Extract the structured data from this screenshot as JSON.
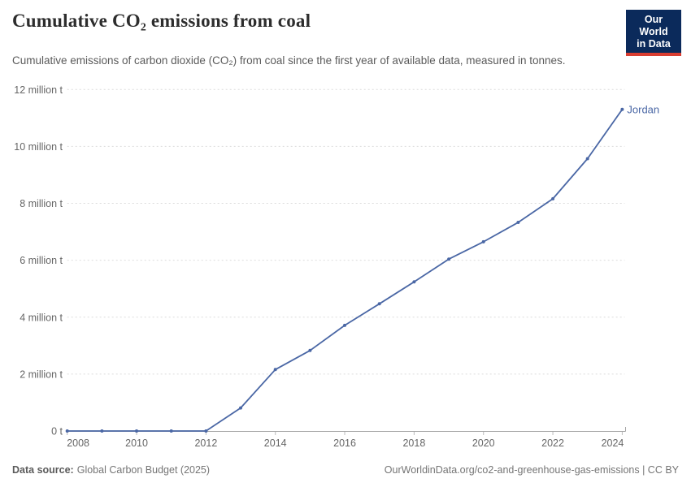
{
  "header": {
    "title": "Cumulative CO₂ emissions from coal",
    "subtitle": "Cumulative emissions of carbon dioxide (CO₂) from coal since the first year of available data, measured in tonnes.",
    "logo": {
      "line1": "Our World",
      "line2": "in Data",
      "bg_color": "#0b2a5b",
      "accent_color": "#d93d31"
    }
  },
  "chart_data": {
    "type": "line",
    "title": "Cumulative CO₂ emissions from coal",
    "unit": "million tonnes",
    "xlabel": "",
    "ylabel": "",
    "xlim": [
      2008,
      2024
    ],
    "ylim": [
      0,
      12
    ],
    "grid": "horizontal dashed",
    "legend_position": "end-of-line label",
    "x_ticks": [
      2008,
      2010,
      2012,
      2014,
      2016,
      2018,
      2020,
      2022,
      2024
    ],
    "y_ticks": [
      {
        "value": 0,
        "label": "0 t"
      },
      {
        "value": 2,
        "label": "2 million t"
      },
      {
        "value": 4,
        "label": "4 million t"
      },
      {
        "value": 6,
        "label": "6 million t"
      },
      {
        "value": 8,
        "label": "8 million t"
      },
      {
        "value": 10,
        "label": "10 million t"
      },
      {
        "value": 12,
        "label": "12 million t"
      }
    ],
    "series": [
      {
        "name": "Jordan",
        "color": "#4a67a5",
        "x": [
          2008,
          2009,
          2010,
          2011,
          2012,
          2013,
          2014,
          2015,
          2016,
          2017,
          2018,
          2019,
          2020,
          2021,
          2022,
          2023,
          2024
        ],
        "values": [
          0,
          0,
          0,
          0,
          0,
          0.81,
          2.16,
          2.83,
          3.71,
          4.47,
          5.24,
          6.04,
          6.65,
          7.33,
          8.16,
          9.57,
          11.3
        ]
      }
    ],
    "colors": {
      "gridline": "#dcdcdc",
      "axis_line": "#a5a5a5",
      "tick_text": "#666666"
    }
  },
  "footer": {
    "data_source_label": "Data source:",
    "data_source_value": "Global Carbon Budget (2025)",
    "citation": "OurWorldinData.org/co2-and-greenhouse-gas-emissions | CC BY"
  }
}
